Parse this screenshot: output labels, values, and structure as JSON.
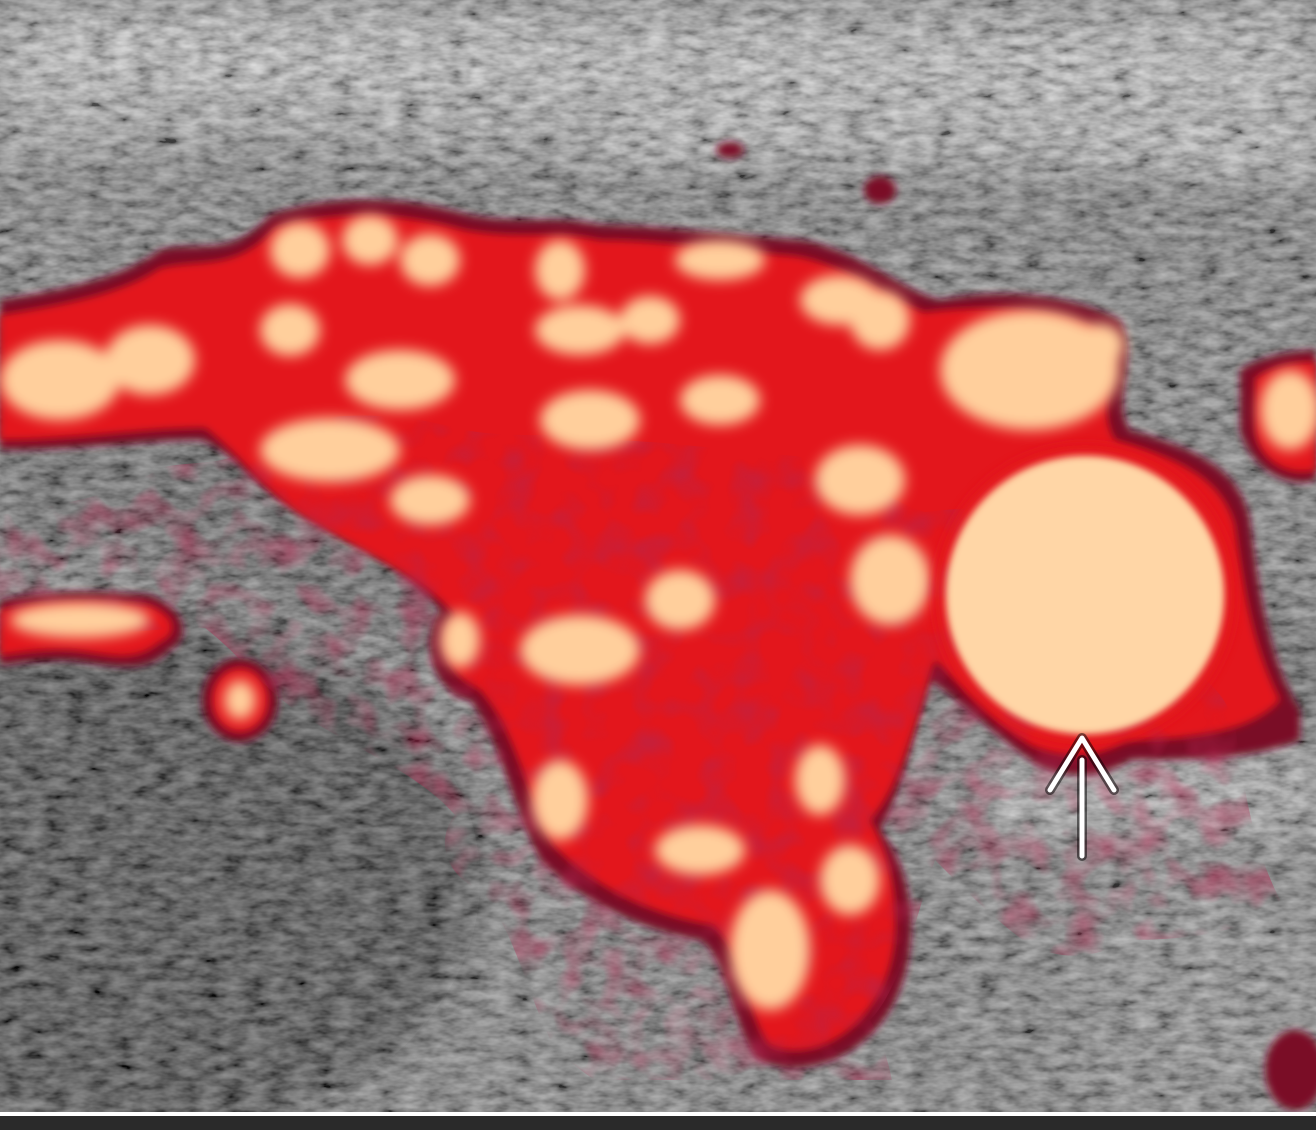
{
  "image": {
    "kind": "power-doppler-ultrasound",
    "palette": {
      "tissue_dark": "#1c1c1c",
      "tissue_mid": "#6e6e6e",
      "tissue_light": "#c9c9c9",
      "flow_edge": "#8a0f2a",
      "flow_red": "#e0141c",
      "flow_core": "#ffd2a0",
      "arrow": "#ffffff",
      "bottom_rule": "#ffffff"
    }
  },
  "annotations": [
    {
      "icon": "up-arrow-icon",
      "color": "#ffffff"
    }
  ]
}
